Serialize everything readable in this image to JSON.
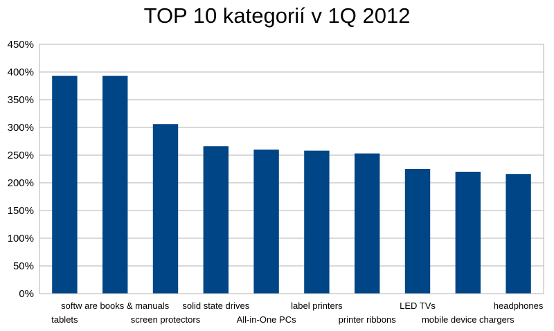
{
  "chart_data": {
    "type": "bar",
    "title": "TOP 10 kategorií v 1Q 2012",
    "xlabel": "",
    "ylabel": "",
    "categories": [
      "tablets",
      "softw are books & manuals",
      "screen protectors",
      "solid state drives",
      "All-in-One PCs",
      "label printers",
      "printer ribbons",
      "LED TVs",
      "mobile device chargers",
      "headphones"
    ],
    "values": [
      393,
      393,
      306,
      266,
      260,
      258,
      253,
      225,
      220,
      216
    ],
    "ylim": [
      0,
      450
    ],
    "yticks": [
      "0%",
      "50%",
      "100%",
      "150%",
      "200%",
      "250%",
      "300%",
      "350%",
      "400%",
      "450%"
    ],
    "grid": true,
    "legend": "none",
    "bar_color": "#004586"
  }
}
